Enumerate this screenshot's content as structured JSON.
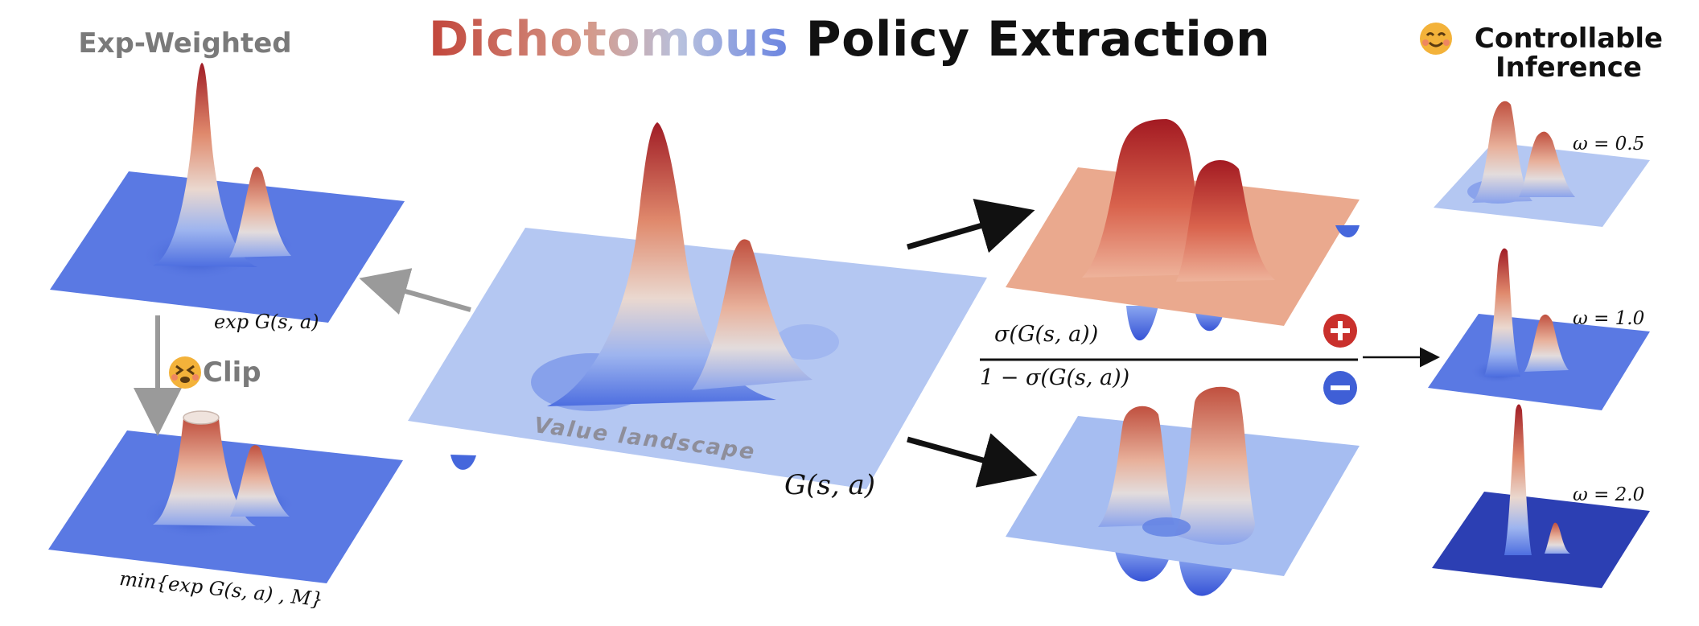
{
  "title": {
    "part_colored": "Dichotomous",
    "part_plain": "Policy Extraction"
  },
  "left": {
    "top_title": "Exp-Weighted",
    "top_formula": "exp G(s, a)",
    "clip_label": "Clip",
    "bottom_formula": "min{exp G(s, a) , M}"
  },
  "center": {
    "surface_label": "Value landscape",
    "formula": "G(s, a)"
  },
  "split": {
    "numerator": "σ(G(s, a))",
    "denominator": "1 − σ(G(s, a))",
    "plus_symbol": "+",
    "minus_symbol": "−"
  },
  "right": {
    "title_line1": "Controllable",
    "title_line2": "Inference",
    "omega_labels": [
      "ω = 0.5",
      "ω = 1.0",
      "ω = 2.0"
    ]
  },
  "colors": {
    "red_peak": "#b2182b",
    "blue_base": "#3b5bdb",
    "light_plane": "#b4c7f2",
    "orange_plane": "#eaa98e",
    "plus_badge": "#c9302c",
    "minus_badge": "#3f5fd6",
    "grey_arrow": "#9a9a9a"
  },
  "icons": [
    "dizzy-face-icon",
    "smiling-face-icon",
    "plus-circle-icon",
    "minus-circle-icon"
  ]
}
